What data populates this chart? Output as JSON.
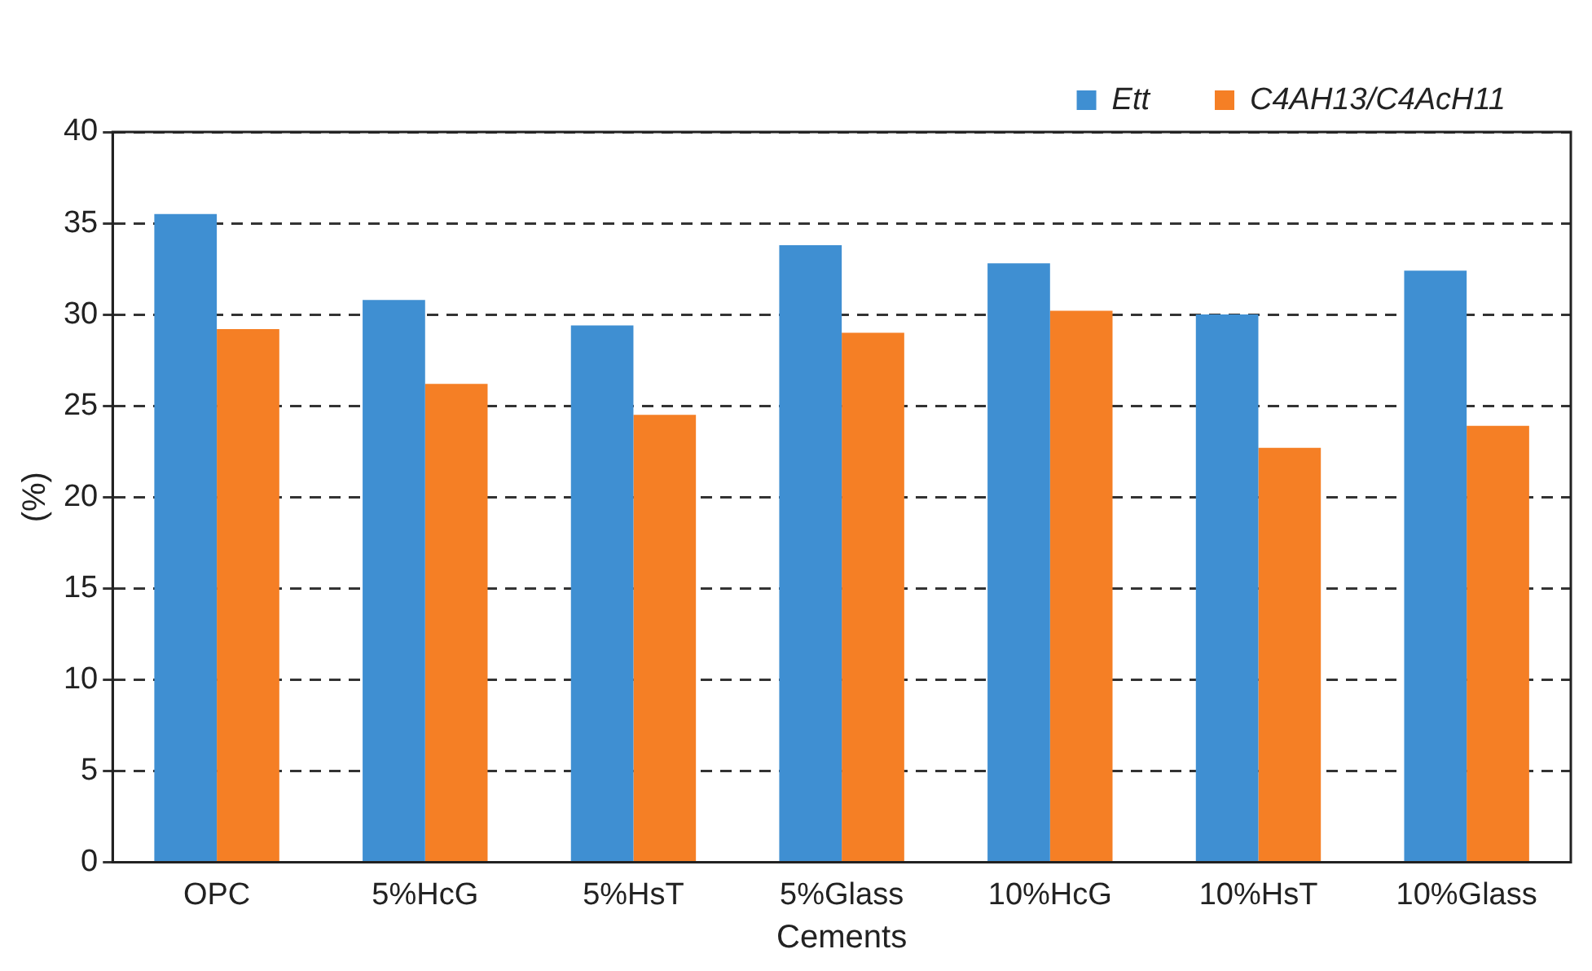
{
  "chart_data": {
    "type": "bar",
    "xlabel": "Cements",
    "ylabel": "(%)",
    "categories": [
      "OPC",
      "5%HcG",
      "5%HsT",
      "5%Glass",
      "10%HcG",
      "10%HsT",
      "10%Glass"
    ],
    "series": [
      {
        "name": "Ett",
        "color": "#3f8fd2",
        "values": [
          35.5,
          30.8,
          29.4,
          33.8,
          32.8,
          30.0,
          32.4
        ]
      },
      {
        "name": "C4AH13/C4AcH11",
        "color": "#f57f25",
        "values": [
          29.2,
          26.2,
          24.5,
          29.0,
          30.2,
          22.7,
          23.9
        ]
      }
    ],
    "ylim": [
      0,
      40
    ],
    "yticks": [
      0,
      5,
      10,
      15,
      20,
      25,
      30,
      35,
      40
    ],
    "grid": "y",
    "legend": "top right"
  }
}
